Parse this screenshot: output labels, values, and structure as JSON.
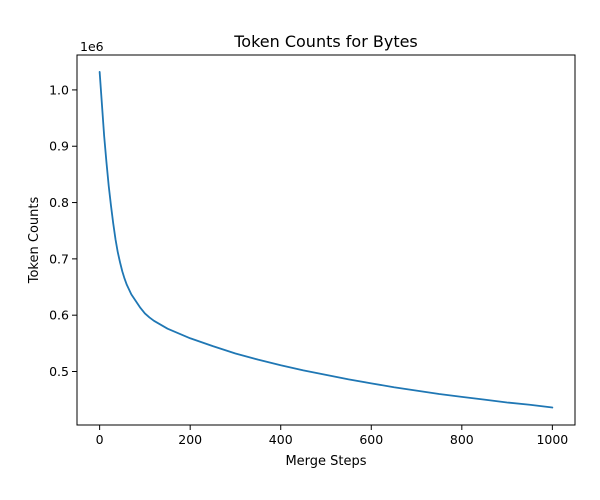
{
  "chart_data": {
    "type": "line",
    "title": "Token Counts for Bytes",
    "xlabel": "Merge Steps",
    "ylabel": "Token Counts",
    "y_offset_label": "1e6",
    "xlim": [
      -50,
      1050
    ],
    "ylim": [
      0.405,
      1.062
    ],
    "y_scale_note": "1e6",
    "xticks": [
      0,
      200,
      400,
      600,
      800,
      1000
    ],
    "xtick_labels": [
      "0",
      "200",
      "400",
      "600",
      "800",
      "1000"
    ],
    "yticks": [
      0.5,
      0.6,
      0.7,
      0.8,
      0.9,
      1.0
    ],
    "ytick_labels": [
      "0.5",
      "0.6",
      "0.7",
      "0.8",
      "0.9",
      "1.0"
    ],
    "grid": false,
    "series": [
      {
        "color": "#1f77b4",
        "x": [
          0,
          5,
          10,
          15,
          20,
          25,
          30,
          35,
          40,
          45,
          50,
          55,
          60,
          70,
          80,
          90,
          100,
          110,
          120,
          150,
          200,
          250,
          300,
          350,
          400,
          450,
          500,
          550,
          600,
          650,
          700,
          750,
          800,
          850,
          900,
          950,
          1000
        ],
        "y": [
          1.032,
          0.975,
          0.918,
          0.872,
          0.83,
          0.795,
          0.763,
          0.735,
          0.712,
          0.694,
          0.678,
          0.665,
          0.654,
          0.637,
          0.625,
          0.613,
          0.603,
          0.596,
          0.59,
          0.576,
          0.559,
          0.545,
          0.532,
          0.521,
          0.511,
          0.502,
          0.494,
          0.486,
          0.479,
          0.472,
          0.466,
          0.46,
          0.455,
          0.45,
          0.445,
          0.441,
          0.436
        ]
      }
    ]
  }
}
